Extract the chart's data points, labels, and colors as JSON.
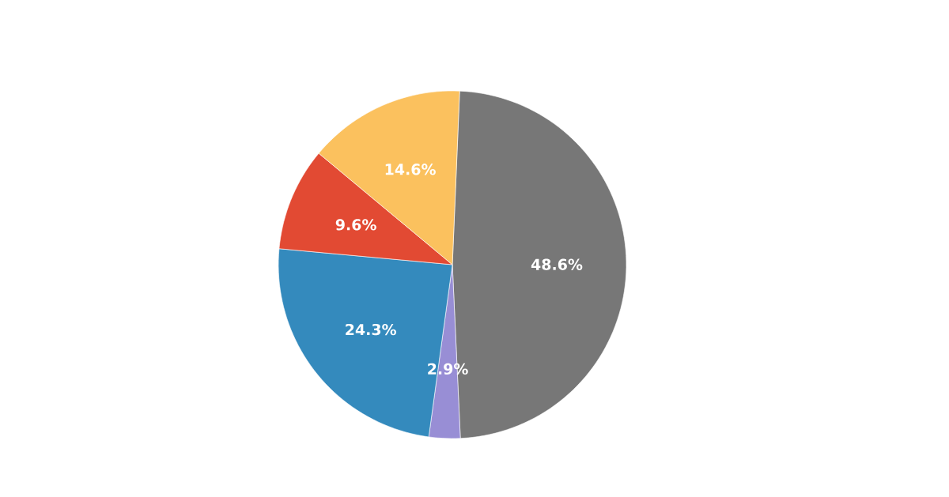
{
  "chart_data": {
    "type": "pie",
    "categories": [
      null,
      null,
      null,
      null,
      null
    ],
    "values": [
      48.6,
      2.9,
      24.3,
      9.6,
      14.6
    ],
    "colors": [
      "#777777",
      "#988ed5",
      "#348abd",
      "#e24a33",
      "#fbc15e"
    ],
    "value_labels": [
      "48.6%",
      "2.9%",
      "24.3%",
      "9.6%",
      "14.6%"
    ]
  }
}
